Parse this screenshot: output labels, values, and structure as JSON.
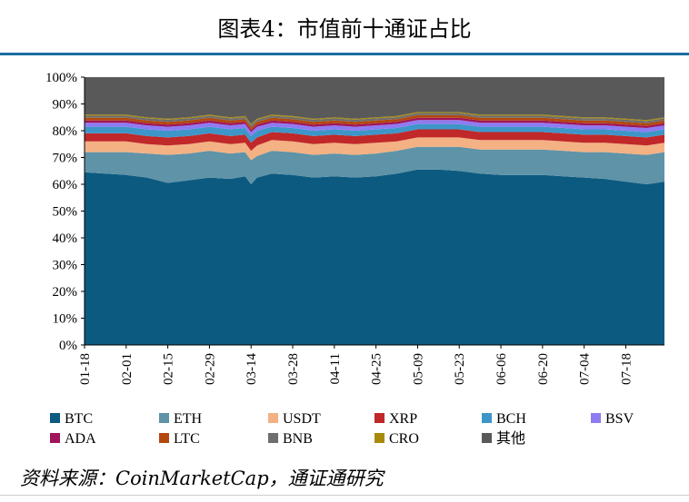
{
  "title": "图表4：市值前十通证占比",
  "source": "资料来源：CoinMarketCap，通证通研究",
  "chart_data": {
    "type": "area",
    "stacked": true,
    "x_ticks": [
      "01-18",
      "02-01",
      "02-15",
      "02-29",
      "03-14",
      "03-28",
      "04-11",
      "04-25",
      "05-09",
      "05-23",
      "06-06",
      "06-20",
      "07-04",
      "07-18"
    ],
    "x_start": "01-18",
    "x_end": "07-31",
    "y_ticks": [
      "0%",
      "10%",
      "20%",
      "30%",
      "40%",
      "50%",
      "60%",
      "70%",
      "80%",
      "90%",
      "100%"
    ],
    "ylim": [
      0,
      100
    ],
    "legend_position": "bottom",
    "x": [
      "01-18",
      "01-25",
      "02-01",
      "02-08",
      "02-15",
      "02-22",
      "02-29",
      "03-07",
      "03-12",
      "03-14",
      "03-16",
      "03-21",
      "03-28",
      "04-04",
      "04-11",
      "04-18",
      "04-25",
      "05-02",
      "05-09",
      "05-16",
      "05-23",
      "05-30",
      "06-06",
      "06-13",
      "06-20",
      "06-27",
      "07-04",
      "07-11",
      "07-18",
      "07-25",
      "07-31"
    ],
    "series": [
      {
        "name": "BTC",
        "color": "#0d5a80",
        "values": [
          64.5,
          64.0,
          63.5,
          62.5,
          60.5,
          61.5,
          62.5,
          62.0,
          63.0,
          60.0,
          62.5,
          64.0,
          63.5,
          62.5,
          63.0,
          62.5,
          63.0,
          64.0,
          65.5,
          65.5,
          65.0,
          64.0,
          63.5,
          63.5,
          63.5,
          63.0,
          62.5,
          62.0,
          61.0,
          60.0,
          61.0
        ]
      },
      {
        "name": "ETH",
        "color": "#5e93a8",
        "values": [
          7.5,
          8.0,
          8.5,
          9.0,
          10.5,
          10.0,
          10.0,
          9.5,
          9.0,
          9.0,
          8.0,
          8.5,
          8.5,
          8.5,
          8.5,
          8.5,
          8.5,
          8.5,
          8.5,
          8.5,
          9.0,
          9.0,
          9.5,
          9.5,
          9.5,
          9.5,
          9.5,
          10.0,
          10.5,
          11.0,
          11.0
        ]
      },
      {
        "name": "USDT",
        "color": "#f4b183",
        "values": [
          4.0,
          4.0,
          4.0,
          3.5,
          3.5,
          3.5,
          3.5,
          3.5,
          3.5,
          3.5,
          4.0,
          4.0,
          4.0,
          4.0,
          4.0,
          4.0,
          4.0,
          3.5,
          3.5,
          3.5,
          3.5,
          3.5,
          3.5,
          3.5,
          3.5,
          3.5,
          3.5,
          3.5,
          3.5,
          3.5,
          3.5
        ]
      },
      {
        "name": "XRP",
        "color": "#c0282a",
        "values": [
          3.0,
          3.0,
          3.0,
          3.0,
          3.0,
          3.0,
          3.0,
          3.0,
          3.0,
          3.0,
          3.0,
          3.0,
          3.0,
          3.0,
          3.0,
          3.0,
          3.0,
          3.0,
          3.0,
          3.0,
          3.0,
          3.0,
          3.0,
          3.0,
          3.0,
          3.0,
          3.0,
          3.0,
          3.0,
          3.0,
          3.0
        ]
      },
      {
        "name": "BCH",
        "color": "#3e96c8",
        "values": [
          2.5,
          2.5,
          2.5,
          2.5,
          2.5,
          2.5,
          2.5,
          2.5,
          2.5,
          2.5,
          2.5,
          2.0,
          2.0,
          2.0,
          2.0,
          2.0,
          2.0,
          2.0,
          2.0,
          2.0,
          2.0,
          2.0,
          2.0,
          2.0,
          2.0,
          2.0,
          2.0,
          2.0,
          2.0,
          2.0,
          2.0
        ]
      },
      {
        "name": "BSV",
        "color": "#8f7bf2",
        "values": [
          1.5,
          1.5,
          1.5,
          1.5,
          1.5,
          1.5,
          1.5,
          1.5,
          1.5,
          1.5,
          1.5,
          1.5,
          1.5,
          1.5,
          1.5,
          1.5,
          1.5,
          1.5,
          1.5,
          1.5,
          1.5,
          1.5,
          1.5,
          1.5,
          1.5,
          1.5,
          1.5,
          1.5,
          1.5,
          1.5,
          1.5
        ]
      },
      {
        "name": "ADA",
        "color": "#a0145a",
        "values": [
          0.8,
          0.8,
          0.8,
          0.8,
          0.8,
          0.8,
          0.8,
          0.8,
          0.8,
          0.8,
          0.8,
          0.8,
          0.8,
          0.8,
          0.8,
          0.8,
          0.8,
          0.8,
          0.8,
          0.8,
          0.8,
          0.8,
          0.8,
          0.8,
          0.8,
          0.8,
          0.8,
          0.8,
          0.8,
          0.8,
          0.8
        ]
      },
      {
        "name": "LTC",
        "color": "#b3480e",
        "values": [
          1.0,
          1.0,
          1.0,
          1.0,
          1.0,
          1.0,
          1.0,
          1.0,
          1.0,
          1.0,
          1.0,
          1.0,
          1.0,
          1.0,
          1.0,
          1.0,
          1.0,
          1.0,
          1.0,
          1.0,
          1.0,
          1.0,
          1.0,
          1.0,
          1.0,
          1.0,
          1.0,
          1.0,
          1.0,
          1.0,
          1.0
        ]
      },
      {
        "name": "BNB",
        "color": "#6e6e6e",
        "values": [
          0.8,
          0.8,
          0.8,
          0.8,
          0.8,
          0.8,
          0.8,
          0.8,
          0.8,
          0.8,
          0.8,
          0.8,
          0.8,
          0.8,
          0.8,
          0.8,
          0.8,
          0.8,
          0.8,
          0.8,
          0.8,
          0.8,
          0.8,
          0.8,
          0.8,
          0.8,
          0.8,
          0.8,
          0.8,
          0.8,
          0.8
        ]
      },
      {
        "name": "CRO",
        "color": "#a88a0a",
        "values": [
          0.4,
          0.4,
          0.4,
          0.4,
          0.4,
          0.4,
          0.4,
          0.4,
          0.4,
          0.4,
          0.4,
          0.4,
          0.4,
          0.4,
          0.4,
          0.4,
          0.4,
          0.4,
          0.4,
          0.4,
          0.4,
          0.4,
          0.4,
          0.4,
          0.4,
          0.4,
          0.4,
          0.4,
          0.4,
          0.4,
          0.4
        ]
      },
      {
        "name": "其他",
        "color": "#595959",
        "values": [
          14.0,
          14.0,
          14.0,
          15.0,
          15.5,
          15.0,
          14.0,
          14.9,
          14.0,
          18.0,
          15.5,
          13.8,
          14.5,
          15.5,
          14.8,
          15.5,
          14.5,
          14.5,
          13.0,
          13.0,
          13.0,
          14.0,
          14.0,
          14.0,
          14.0,
          14.5,
          15.0,
          15.0,
          15.5,
          16.0,
          15.0
        ]
      }
    ]
  }
}
